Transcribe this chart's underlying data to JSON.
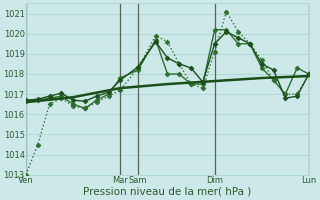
{
  "xlabel": "Pression niveau de la mer( hPa )",
  "bg_color": "#cce8e8",
  "grid_color": "#aed4d4",
  "ylim": [
    1013.0,
    1021.5
  ],
  "yticks": [
    1013,
    1014,
    1015,
    1016,
    1017,
    1018,
    1019,
    1020,
    1021
  ],
  "xlim": [
    0,
    24
  ],
  "vline_positions": [
    0,
    8,
    9.5,
    16,
    24
  ],
  "xtick_positions": [
    0,
    8,
    9.5,
    16,
    24
  ],
  "xtick_labels": [
    "Ven",
    "Mar",
    "Sam",
    "Dim",
    "Lun"
  ],
  "series": [
    {
      "x": [
        0,
        1,
        2,
        3,
        4,
        5,
        6,
        7,
        8,
        9.5,
        11,
        12,
        13,
        14,
        15,
        16,
        17,
        18,
        19,
        20,
        21,
        22,
        23,
        24
      ],
      "y": [
        1013.0,
        1014.5,
        1016.5,
        1016.8,
        1016.4,
        1016.3,
        1016.6,
        1016.9,
        1017.2,
        1018.3,
        1019.9,
        1019.6,
        1018.5,
        1017.5,
        1017.3,
        1019.1,
        1021.1,
        1020.1,
        1019.5,
        1018.7,
        1017.7,
        1017.0,
        1017.0,
        1018.0
      ],
      "style": ":",
      "marker": "D",
      "markersize": 2.5,
      "linewidth": 1.0,
      "color": "#2d6e2d"
    },
    {
      "x": [
        0,
        1,
        2,
        3,
        4,
        5,
        6,
        7,
        8,
        9.5,
        11,
        12,
        13,
        14,
        15,
        16,
        17,
        18,
        19,
        20,
        21,
        22,
        23,
        24
      ],
      "y": [
        1016.65,
        1016.7,
        1016.8,
        1016.9,
        1016.5,
        1016.3,
        1016.7,
        1017.0,
        1017.8,
        1018.2,
        1019.7,
        1018.0,
        1018.0,
        1017.5,
        1017.5,
        1020.2,
        1020.2,
        1019.5,
        1019.5,
        1018.3,
        1017.7,
        1017.0,
        1018.3,
        1018.0
      ],
      "style": "-",
      "marker": "D",
      "markersize": 2.5,
      "linewidth": 1.0,
      "color": "#2d6e2d"
    },
    {
      "x": [
        0,
        1,
        2,
        3,
        4,
        5,
        6,
        7,
        8,
        9.5,
        11,
        12,
        13,
        14,
        15,
        16,
        17,
        18,
        19,
        20,
        21,
        22,
        23,
        24
      ],
      "y": [
        1016.7,
        1016.75,
        1016.9,
        1017.05,
        1016.7,
        1016.65,
        1016.9,
        1017.1,
        1017.7,
        1018.35,
        1019.6,
        1018.8,
        1018.5,
        1018.3,
        1017.6,
        1019.5,
        1020.1,
        1019.8,
        1019.5,
        1018.5,
        1018.2,
        1016.8,
        1016.9,
        1018.0
      ],
      "style": "-",
      "marker": "D",
      "markersize": 2.5,
      "linewidth": 1.0,
      "color": "#1a4f1a"
    },
    {
      "x": [
        0,
        4,
        8,
        12,
        16,
        20,
        24
      ],
      "y": [
        1016.6,
        1016.85,
        1017.3,
        1017.5,
        1017.65,
        1017.8,
        1017.9
      ],
      "style": "-",
      "marker": null,
      "markersize": 0,
      "linewidth": 1.8,
      "color": "#1a4f1a"
    }
  ],
  "font_color": "#2d5c2d",
  "tick_font_size": 6,
  "xlabel_font_size": 7.5
}
